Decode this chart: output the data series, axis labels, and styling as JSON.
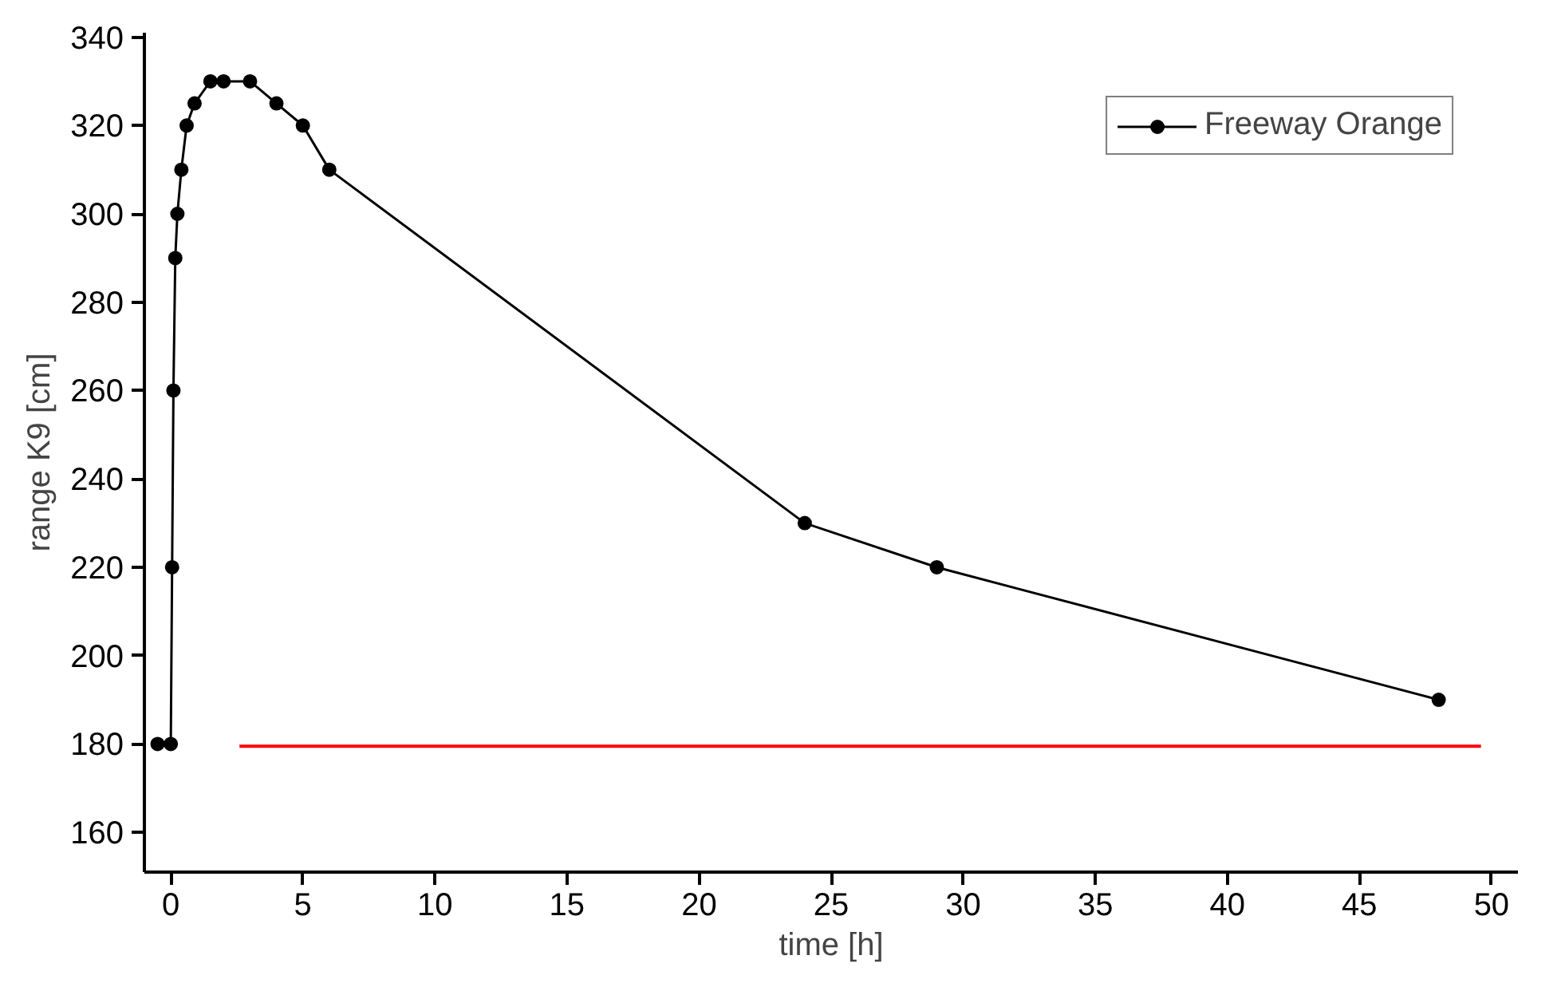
{
  "chart_data": {
    "type": "line",
    "xlabel": "time [h]",
    "ylabel": "range K9 [cm]",
    "xlim": [
      -1,
      51
    ],
    "ylim": [
      151,
      341
    ],
    "xticks": [
      0,
      5,
      10,
      15,
      20,
      25,
      30,
      35,
      40,
      45,
      50
    ],
    "yticks": [
      160,
      180,
      200,
      220,
      240,
      260,
      280,
      300,
      320,
      340
    ],
    "grid": false,
    "legend": "top right",
    "series": [
      {
        "name": "Freeway Orange",
        "color": "#000000",
        "marker": "circle",
        "line_style": "solid",
        "x": [
          -0.5,
          0,
          0.05,
          0.1,
          0.17,
          0.25,
          0.4,
          0.6,
          0.9,
          1.5,
          2,
          3,
          4,
          5,
          6,
          24,
          29,
          48
        ],
        "values": [
          180,
          180,
          220,
          260,
          290,
          300,
          310,
          320,
          325,
          330,
          330,
          330,
          325,
          320,
          310,
          230,
          220,
          190
        ]
      },
      {
        "color": "#ff0000",
        "marker": "none",
        "line_style": "solid",
        "x": [
          2.6,
          49.6
        ],
        "values": [
          179.5,
          179.5
        ]
      }
    ]
  }
}
